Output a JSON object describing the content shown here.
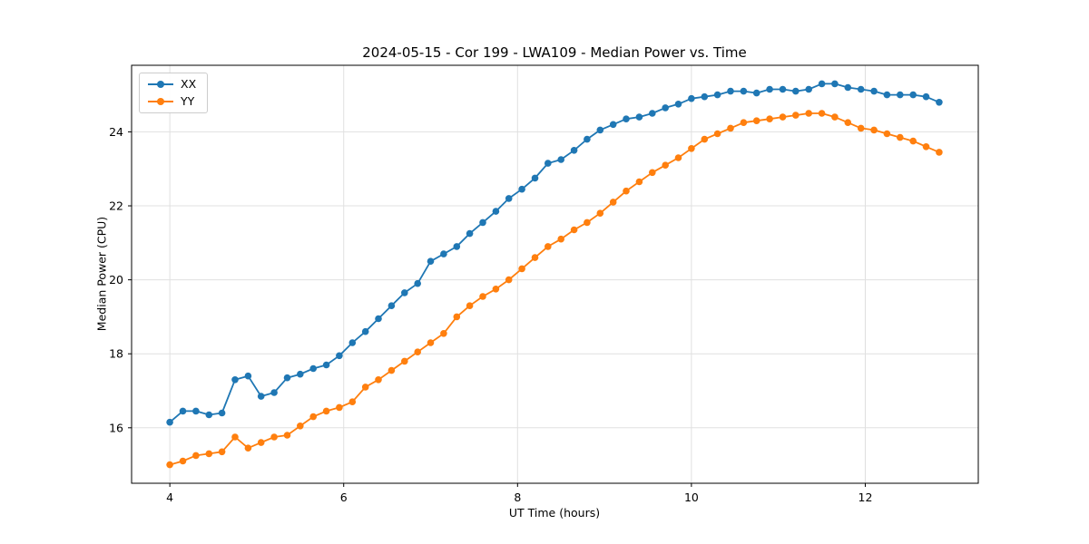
{
  "chart_data": {
    "type": "line",
    "title": "2024-05-15 - Cor 199 - LWA109 - Median Power vs. Time",
    "xlabel": "UT Time (hours)",
    "ylabel": "Median Power (CPU)",
    "xlim": [
      3.56,
      13.3
    ],
    "ylim": [
      14.5,
      25.8
    ],
    "xticks": [
      4,
      6,
      8,
      10,
      12
    ],
    "yticks": [
      16,
      18,
      20,
      22,
      24
    ],
    "grid": true,
    "legend_position": "upper left",
    "x": [
      4.0,
      4.15,
      4.3,
      4.45,
      4.6,
      4.75,
      4.9,
      5.05,
      5.2,
      5.35,
      5.5,
      5.65,
      5.8,
      5.95,
      6.1,
      6.25,
      6.4,
      6.55,
      6.7,
      6.85,
      7.0,
      7.15,
      7.3,
      7.45,
      7.6,
      7.75,
      7.9,
      8.05,
      8.2,
      8.35,
      8.5,
      8.65,
      8.8,
      8.95,
      9.1,
      9.25,
      9.4,
      9.55,
      9.7,
      9.85,
      10.0,
      10.15,
      10.3,
      10.45,
      10.6,
      10.75,
      10.9,
      11.05,
      11.2,
      11.35,
      11.5,
      11.65,
      11.8,
      11.95,
      12.1,
      12.25,
      12.4,
      12.55,
      12.7,
      12.85
    ],
    "series": [
      {
        "name": "XX",
        "color": "#1f77b4",
        "values": [
          16.15,
          16.45,
          16.45,
          16.35,
          16.4,
          17.3,
          17.4,
          16.85,
          16.95,
          17.35,
          17.45,
          17.6,
          17.7,
          17.95,
          18.3,
          18.6,
          18.95,
          19.3,
          19.65,
          19.9,
          20.5,
          20.7,
          20.9,
          21.25,
          21.55,
          21.85,
          22.2,
          22.45,
          22.75,
          23.15,
          23.25,
          23.5,
          23.8,
          24.05,
          24.2,
          24.35,
          24.4,
          24.5,
          24.65,
          24.75,
          24.9,
          24.95,
          25.0,
          25.1,
          25.1,
          25.05,
          25.15,
          25.15,
          25.1,
          25.15,
          25.3,
          25.3,
          25.2,
          25.15,
          25.1,
          25.0,
          25.0,
          25.0,
          24.95,
          24.8
        ]
      },
      {
        "name": "YY",
        "color": "#ff7f0e",
        "values": [
          15.0,
          15.1,
          15.25,
          15.3,
          15.35,
          15.75,
          15.45,
          15.6,
          15.75,
          15.8,
          16.05,
          16.3,
          16.45,
          16.55,
          16.7,
          17.1,
          17.3,
          17.55,
          17.8,
          18.05,
          18.3,
          18.55,
          19.0,
          19.3,
          19.55,
          19.75,
          20.0,
          20.3,
          20.6,
          20.9,
          21.1,
          21.35,
          21.55,
          21.8,
          22.1,
          22.4,
          22.65,
          22.9,
          23.1,
          23.3,
          23.55,
          23.8,
          23.95,
          24.1,
          24.25,
          24.3,
          24.35,
          24.4,
          24.45,
          24.5,
          24.5,
          24.4,
          24.25,
          24.1,
          24.05,
          23.95,
          23.85,
          23.75,
          23.6,
          23.45
        ]
      }
    ]
  }
}
